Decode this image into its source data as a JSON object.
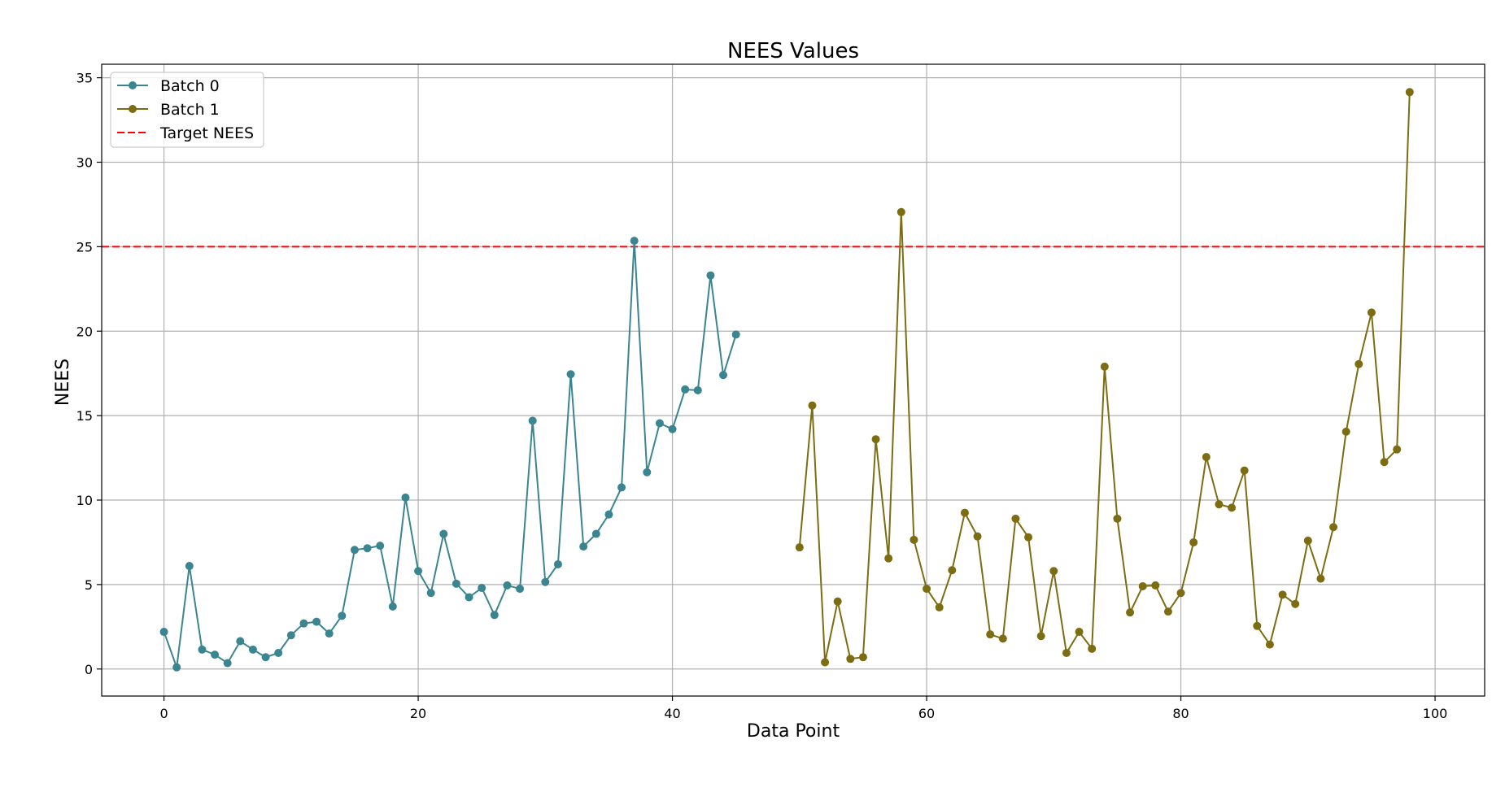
{
  "chart_data": {
    "type": "line",
    "title": "NEES Values",
    "xlabel": "Data Point",
    "ylabel": "NEES",
    "xlim": [
      -4.9,
      103.9
    ],
    "ylim": [
      -1.6,
      35.8
    ],
    "xticks": [
      0,
      20,
      40,
      60,
      80,
      100
    ],
    "yticks": [
      0,
      5,
      10,
      15,
      20,
      25,
      30,
      35
    ],
    "grid": true,
    "legend_position": "upper-left",
    "series": [
      {
        "name": "Batch 0",
        "color": "#3a8590",
        "marker": "circle",
        "x": [
          0,
          1,
          2,
          3,
          4,
          5,
          6,
          7,
          8,
          9,
          10,
          11,
          12,
          13,
          14,
          15,
          16,
          17,
          18,
          19,
          20,
          21,
          22,
          23,
          24,
          25,
          26,
          27,
          28,
          29,
          30,
          31,
          32,
          33,
          34,
          35,
          36,
          37,
          38,
          39,
          40,
          41,
          42,
          43,
          44,
          45
        ],
        "y": [
          2.2,
          0.1,
          6.1,
          1.15,
          0.85,
          0.35,
          1.65,
          1.15,
          0.7,
          0.95,
          2.0,
          2.7,
          2.8,
          2.1,
          3.15,
          7.05,
          7.15,
          7.3,
          3.7,
          10.15,
          5.8,
          4.5,
          8.0,
          5.05,
          4.25,
          4.8,
          3.2,
          4.95,
          4.75,
          14.7,
          5.15,
          6.2,
          17.45,
          7.25,
          8.0,
          9.15,
          10.75,
          25.35,
          11.65,
          14.55,
          14.2,
          16.55,
          16.5,
          23.3,
          17.4,
          19.8
        ]
      },
      {
        "name": "Batch 1",
        "color": "#7c6c12",
        "marker": "circle",
        "x": [
          50,
          51,
          52,
          53,
          54,
          55,
          56,
          57,
          58,
          59,
          60,
          61,
          62,
          63,
          64,
          65,
          66,
          67,
          68,
          69,
          70,
          71,
          72,
          73,
          74,
          75,
          76,
          77,
          78,
          79,
          80,
          81,
          82,
          83,
          84,
          85,
          86,
          87,
          88,
          89,
          90,
          91,
          92,
          93,
          94,
          95,
          96,
          97,
          98
        ],
        "y": [
          7.2,
          15.6,
          0.4,
          4.0,
          0.6,
          0.7,
          13.6,
          6.55,
          27.05,
          7.65,
          4.75,
          3.65,
          5.85,
          9.25,
          7.85,
          2.05,
          1.8,
          8.9,
          7.8,
          1.95,
          5.8,
          0.95,
          2.2,
          1.2,
          17.9,
          8.9,
          3.35,
          4.9,
          4.95,
          3.4,
          4.5,
          7.5,
          12.55,
          9.75,
          9.55,
          11.75,
          2.55,
          1.45,
          4.4,
          3.85,
          7.6,
          5.35,
          8.4,
          14.05,
          18.05,
          21.1,
          12.25,
          13.0,
          34.15
        ]
      }
    ],
    "reference_lines": [
      {
        "name": "Target NEES",
        "y": 25,
        "color": "#ff0000",
        "style": "dashed"
      }
    ]
  }
}
